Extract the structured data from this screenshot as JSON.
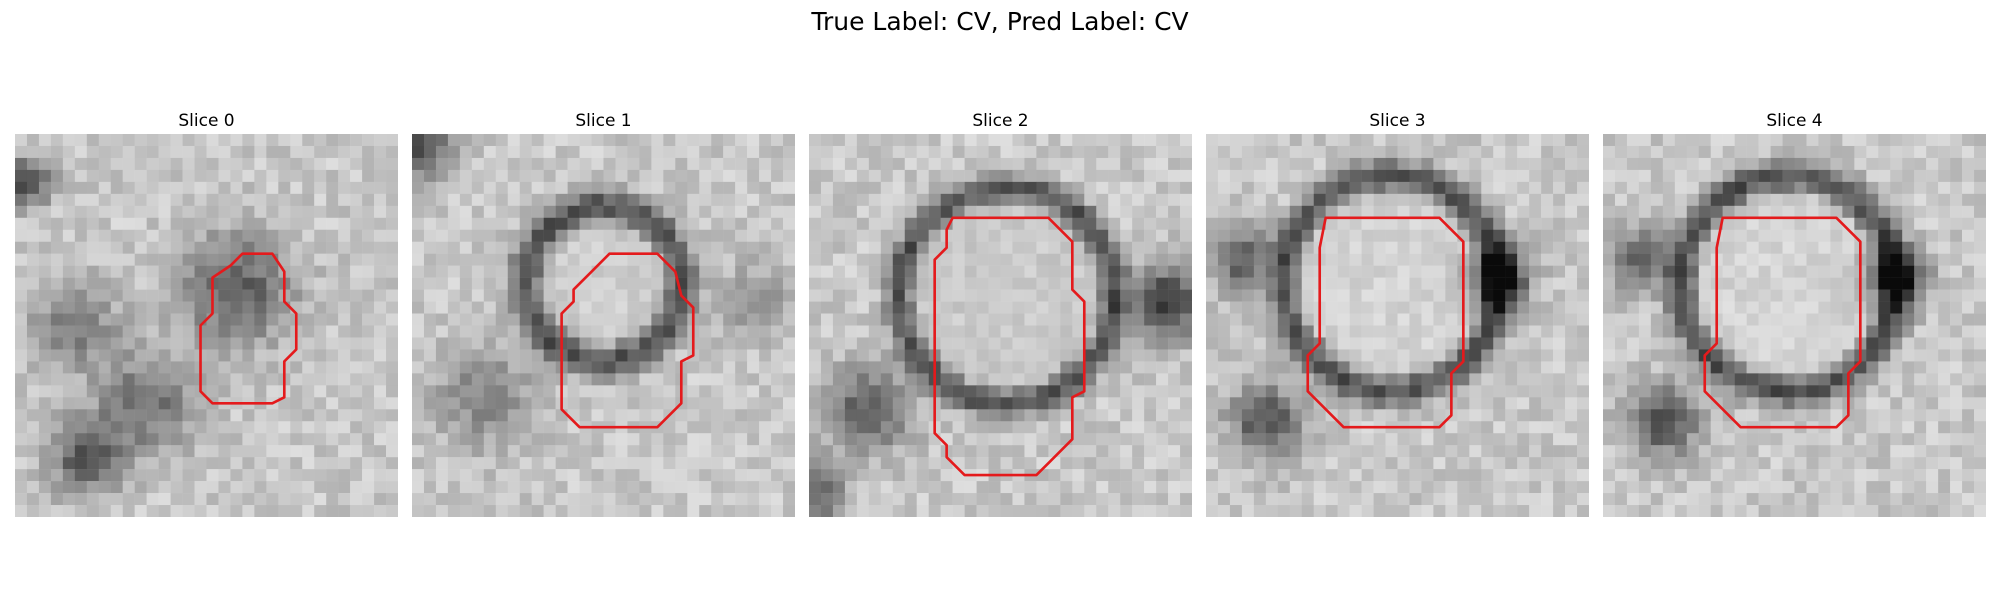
{
  "figure": {
    "title": "True Label: CV, Pred Label: CV",
    "contour_color": "#e41a1c"
  },
  "panels": [
    {
      "title": "Slice 0"
    },
    {
      "title": "Slice 1"
    },
    {
      "title": "Slice 2"
    },
    {
      "title": "Slice 3"
    },
    {
      "title": "Slice 4"
    }
  ]
}
